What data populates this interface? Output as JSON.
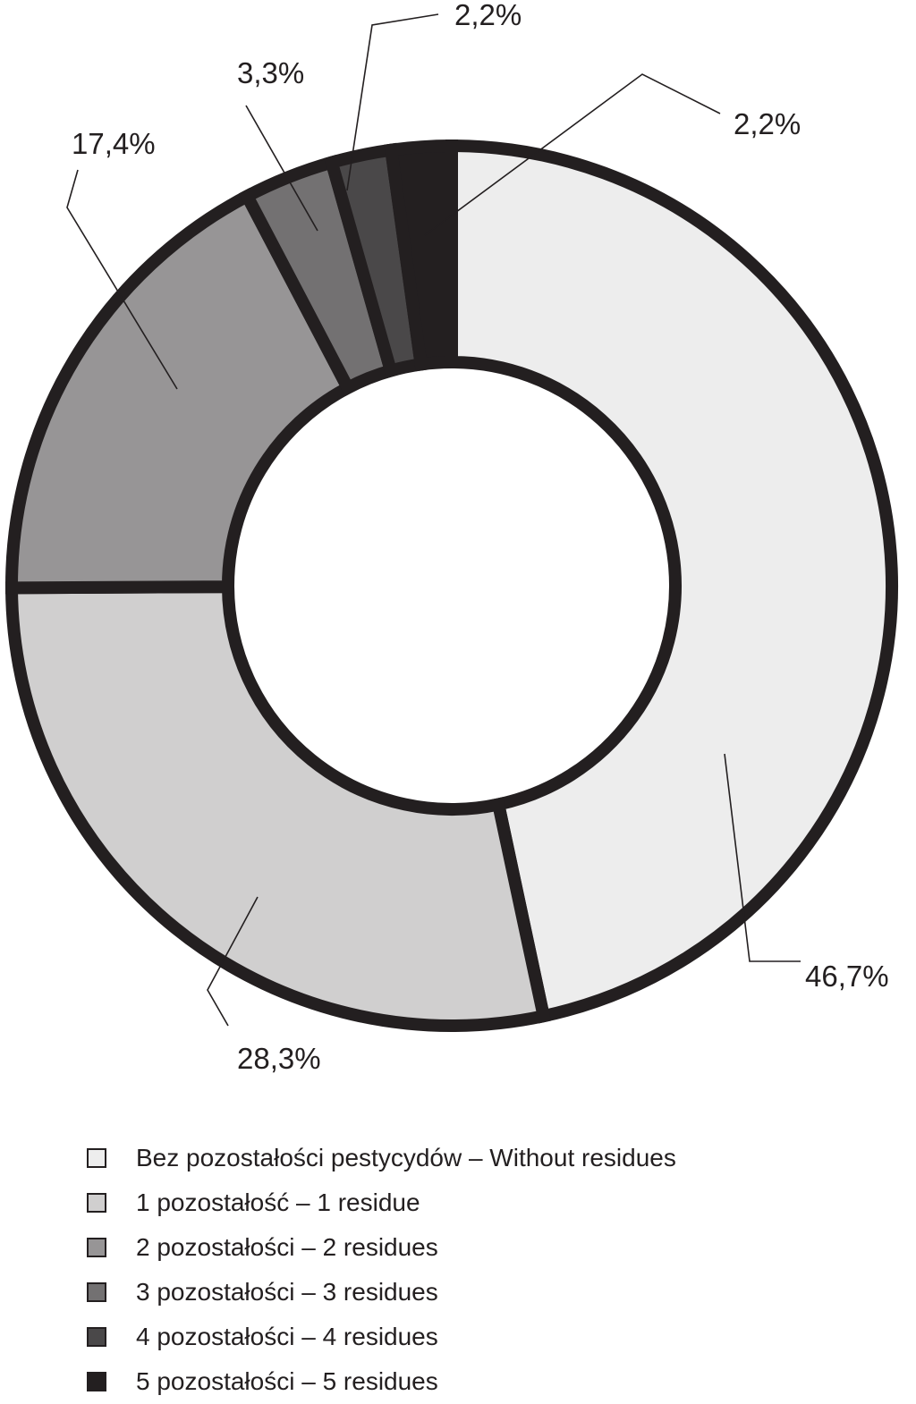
{
  "chart_data": {
    "type": "pie",
    "style": "donut",
    "start": "12 o'clock",
    "direction": "clockwise",
    "outline_color": "#231f20",
    "slices": [
      {
        "label": "Bez pozostałości pestycydów – Without residues",
        "value": 46.7,
        "value_label": "46,7%",
        "color": "#ededed"
      },
      {
        "label": "1 pozostałość – 1 residue",
        "value": 28.3,
        "value_label": "28,3%",
        "color": "#d0cfcf"
      },
      {
        "label": "2 pozostałości – 2 residues",
        "value": 17.4,
        "value_label": "17,4%",
        "color": "#979596"
      },
      {
        "label": "3 pozostałości – 3 residues",
        "value": 3.3,
        "value_label": "3,3%",
        "color": "#737172"
      },
      {
        "label": "4 pozostałości – 4 residues",
        "value": 2.2,
        "value_label": "2,2%",
        "color": "#4a4849"
      },
      {
        "label": "5 pozostałości – 5 residues",
        "value": 2.2,
        "value_label": "2,2%",
        "color": "#231f20"
      }
    ],
    "legend_position": "bottom"
  }
}
